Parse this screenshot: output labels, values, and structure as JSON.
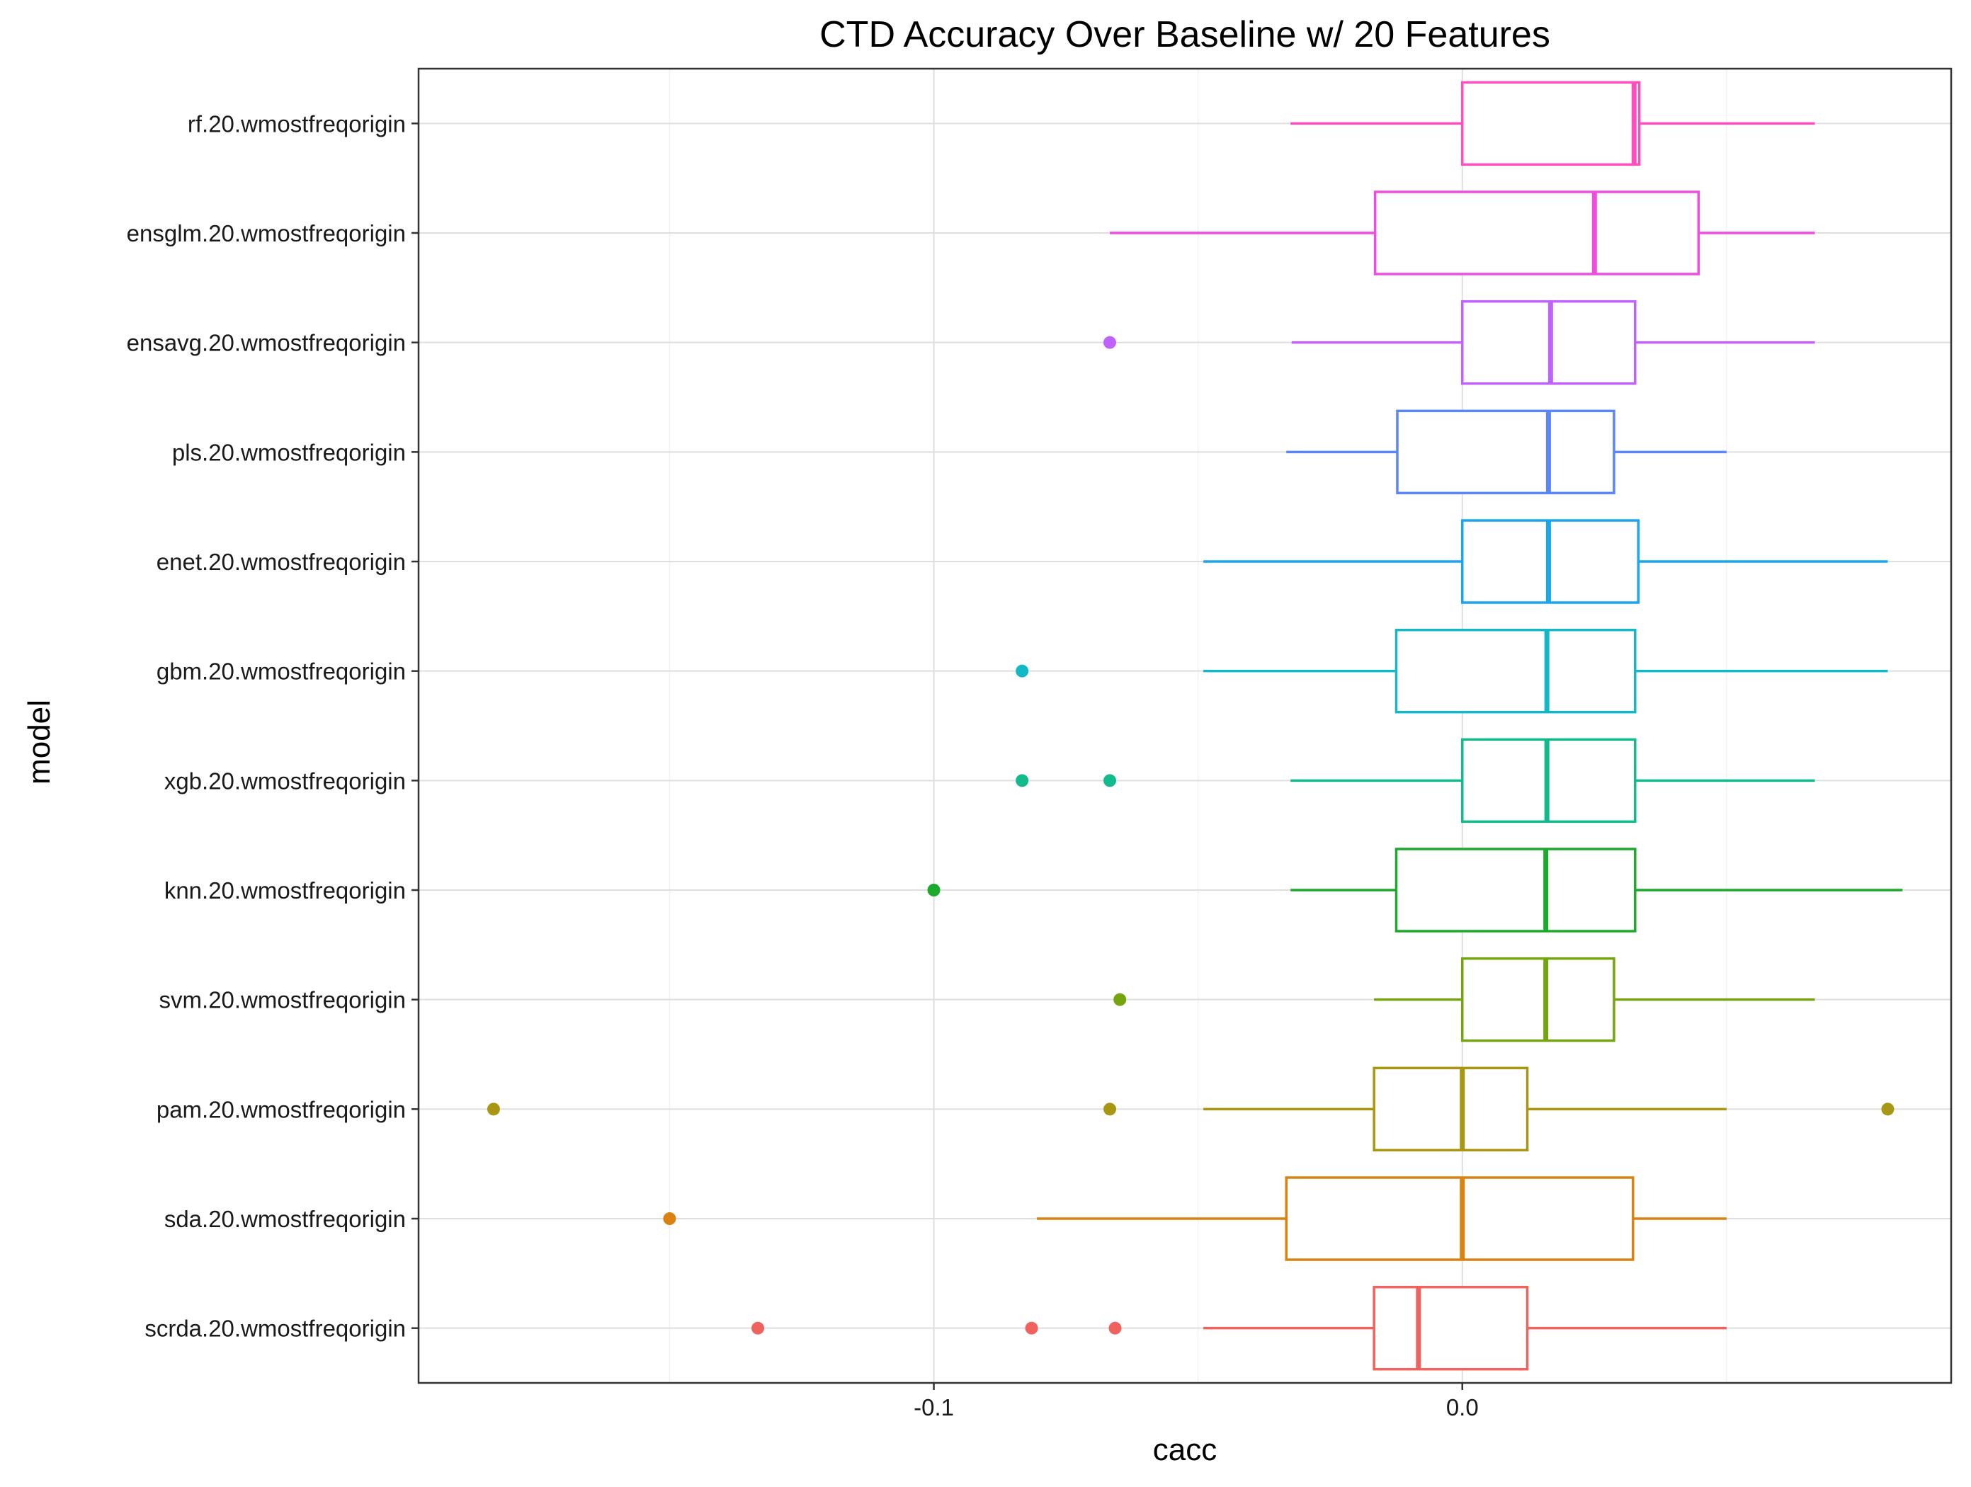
{
  "chart_data": {
    "type": "boxplot",
    "orientation": "horizontal",
    "title": "CTD Accuracy Over Baseline w/ 20 Features",
    "xlabel": "cacc",
    "ylabel": "model",
    "xlim": [
      -0.1975,
      0.0925
    ],
    "x_ticks": [
      {
        "value": -0.1,
        "label": "-0.1"
      },
      {
        "value": 0.0,
        "label": "0.0"
      }
    ],
    "grid": true,
    "legend": "none",
    "colors": {
      "panel_border": "#333333",
      "grid_major": "#dedede",
      "grid_minor": "#f0f0f0"
    },
    "series": [
      {
        "name": "rf.20.wmostfreqorigin",
        "color": "#FF4FBE",
        "whisker_low": -0.0325,
        "q1": 0.0,
        "median": 0.0325,
        "q3": 0.0335,
        "whisker_high": 0.0667,
        "outliers": []
      },
      {
        "name": "ensglm.20.wmostfreqorigin",
        "color": "#F04CE0",
        "whisker_low": -0.0667,
        "q1": -0.0165,
        "median": 0.025,
        "q3": 0.0447,
        "whisker_high": 0.0667,
        "outliers": []
      },
      {
        "name": "ensavg.20.wmostfreqorigin",
        "color": "#C062FD",
        "whisker_low": -0.0323,
        "q1": 0.0,
        "median": 0.0167,
        "q3": 0.0327,
        "whisker_high": 0.0667,
        "outliers": [
          -0.0667
        ]
      },
      {
        "name": "pls.20.wmostfreqorigin",
        "color": "#5B85FA",
        "whisker_low": -0.0333,
        "q1": -0.0123,
        "median": 0.0163,
        "q3": 0.0287,
        "whisker_high": 0.05,
        "outliers": []
      },
      {
        "name": "enet.20.wmostfreqorigin",
        "color": "#19A5F0",
        "whisker_low": -0.049,
        "q1": 0.0,
        "median": 0.0163,
        "q3": 0.0333,
        "whisker_high": 0.0805,
        "outliers": []
      },
      {
        "name": "gbm.20.wmostfreqorigin",
        "color": "#13B7C6",
        "whisker_low": -0.049,
        "q1": -0.0125,
        "median": 0.016,
        "q3": 0.0327,
        "whisker_high": 0.0805,
        "outliers": [
          -0.0833
        ]
      },
      {
        "name": "xgb.20.wmostfreqorigin",
        "color": "#13BA8B",
        "whisker_low": -0.0325,
        "q1": 0.0,
        "median": 0.016,
        "q3": 0.0327,
        "whisker_high": 0.0667,
        "outliers": [
          -0.0833,
          -0.0667
        ]
      },
      {
        "name": "knn.20.wmostfreqorigin",
        "color": "#1CAA2C",
        "whisker_low": -0.0325,
        "q1": -0.0125,
        "median": 0.0158,
        "q3": 0.0327,
        "whisker_high": 0.0833,
        "outliers": [
          -0.1
        ]
      },
      {
        "name": "svm.20.wmostfreqorigin",
        "color": "#74A511",
        "whisker_low": -0.0167,
        "q1": 0.0,
        "median": 0.0158,
        "q3": 0.0287,
        "whisker_high": 0.0667,
        "outliers": [
          -0.0648
        ]
      },
      {
        "name": "pam.20.wmostfreqorigin",
        "color": "#A89713",
        "whisker_low": -0.049,
        "q1": -0.0167,
        "median": 0.0,
        "q3": 0.0123,
        "whisker_high": 0.05,
        "outliers": [
          -0.1833,
          -0.0667,
          0.0805
        ]
      },
      {
        "name": "sda.20.wmostfreqorigin",
        "color": "#DA8210",
        "whisker_low": -0.0805,
        "q1": -0.0333,
        "median": 0.0,
        "q3": 0.0323,
        "whisker_high": 0.05,
        "outliers": [
          -0.15
        ]
      },
      {
        "name": "scrda.20.wmostfreqorigin",
        "color": "#F0625E",
        "whisker_low": -0.049,
        "q1": -0.0167,
        "median": -0.0083,
        "q3": 0.0123,
        "whisker_high": 0.05,
        "outliers": [
          -0.1333,
          -0.0815,
          -0.0657
        ]
      }
    ]
  }
}
